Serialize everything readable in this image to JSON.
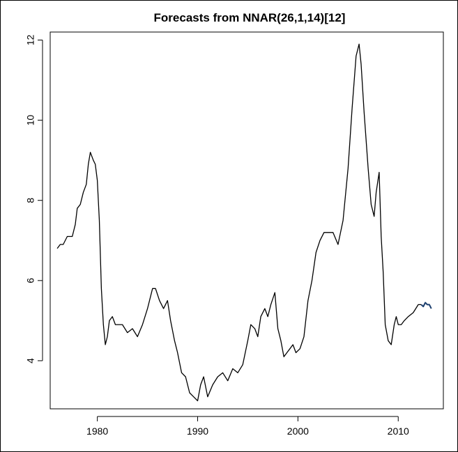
{
  "chart_data": {
    "type": "line",
    "title": "Forecasts from NNAR(26,1,14)[12]",
    "xlabel": "",
    "ylabel": "",
    "xlim": [
      1975.3,
      2014.5
    ],
    "ylim": [
      2.8,
      12.2
    ],
    "x_ticks": [
      1980,
      1990,
      2000,
      2010
    ],
    "x_tick_labels": [
      "1980",
      "1990",
      "2000",
      "2010"
    ],
    "y_ticks": [
      4,
      6,
      8,
      10,
      12
    ],
    "y_tick_labels": [
      "4",
      "6",
      "8",
      "10",
      "12"
    ],
    "grid": false,
    "series": [
      {
        "role": "observed",
        "color": "#000000",
        "x": [
          1976.0,
          1976.3,
          1976.6,
          1977.0,
          1977.5,
          1977.8,
          1978.0,
          1978.3,
          1978.6,
          1978.9,
          1979.1,
          1979.3,
          1979.6,
          1979.8,
          1980.0,
          1980.2,
          1980.4,
          1980.6,
          1980.8,
          1981.0,
          1981.2,
          1981.5,
          1981.8,
          1982.5,
          1983.0,
          1983.5,
          1984.0,
          1984.5,
          1985.0,
          1985.5,
          1985.8,
          1986.2,
          1986.6,
          1987.0,
          1987.3,
          1987.7,
          1988.0,
          1988.4,
          1988.8,
          1989.2,
          1989.6,
          1990.0,
          1990.3,
          1990.6,
          1991.0,
          1991.5,
          1992.0,
          1992.5,
          1993.0,
          1993.5,
          1994.0,
          1994.5,
          1995.0,
          1995.3,
          1995.7,
          1996.0,
          1996.3,
          1996.7,
          1997.0,
          1997.3,
          1997.7,
          1998.0,
          1998.3,
          1998.6,
          1998.9,
          1999.2,
          1999.5,
          1999.8,
          2000.2,
          2000.6,
          2001.0,
          2001.4,
          2001.8,
          2002.2,
          2002.6,
          2003.0,
          2003.5,
          2004.0,
          2004.5,
          2005.0,
          2005.4,
          2005.8,
          2006.1,
          2006.3,
          2006.6,
          2007.0,
          2007.3,
          2007.6,
          2007.8,
          2008.1,
          2008.3,
          2008.5,
          2008.7,
          2009.0,
          2009.3,
          2009.6,
          2009.8,
          2010.0,
          2010.3,
          2010.6,
          2011.0,
          2011.5,
          2012.0,
          2012.3
        ],
        "y": [
          6.8,
          6.9,
          6.9,
          7.1,
          7.1,
          7.4,
          7.8,
          7.9,
          8.2,
          8.4,
          8.9,
          9.2,
          9.0,
          8.9,
          8.5,
          7.5,
          5.8,
          4.9,
          4.4,
          4.6,
          5.0,
          5.1,
          4.9,
          4.9,
          4.7,
          4.8,
          4.6,
          4.9,
          5.3,
          5.8,
          5.8,
          5.5,
          5.3,
          5.5,
          5.0,
          4.5,
          4.2,
          3.7,
          3.6,
          3.2,
          3.1,
          3.0,
          3.4,
          3.6,
          3.1,
          3.4,
          3.6,
          3.7,
          3.5,
          3.8,
          3.7,
          3.9,
          4.5,
          4.9,
          4.8,
          4.6,
          5.1,
          5.3,
          5.1,
          5.4,
          5.7,
          4.8,
          4.5,
          4.1,
          4.2,
          4.3,
          4.4,
          4.2,
          4.3,
          4.6,
          5.5,
          6.0,
          6.7,
          7.0,
          7.2,
          7.2,
          7.2,
          6.9,
          7.5,
          8.8,
          10.3,
          11.6,
          11.9,
          11.4,
          10.2,
          8.8,
          7.9,
          7.6,
          8.2,
          8.7,
          7.1,
          6.2,
          4.9,
          4.5,
          4.4,
          4.9,
          5.1,
          4.9,
          4.9,
          5.0,
          5.1,
          5.2,
          5.4,
          5.4
        ]
      },
      {
        "role": "forecast",
        "color": "#1c3f6e",
        "x": [
          2012.3,
          2012.5,
          2012.7,
          2012.9,
          2013.1,
          2013.3
        ],
        "y": [
          5.4,
          5.35,
          5.45,
          5.4,
          5.4,
          5.3
        ]
      }
    ]
  }
}
